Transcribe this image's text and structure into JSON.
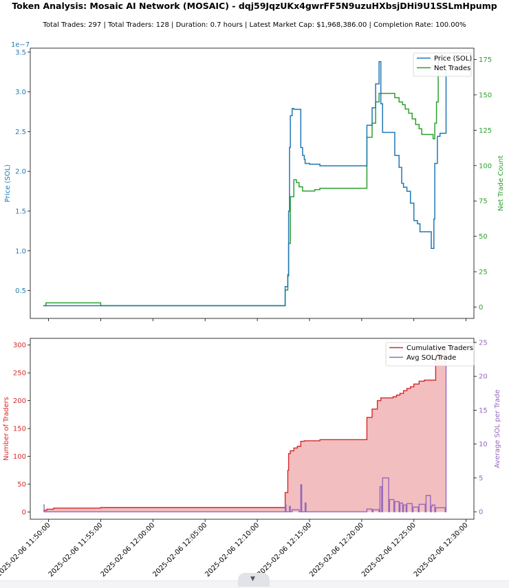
{
  "title": "Token Analysis: Mosaic AI Network (MOSAIC) - dqj59JqzUKx4gwrFF5N9uzuHXbsjDHi9U1SSLmHpump",
  "subtitle": "Total Trades: 297 | Total Traders: 128 | Duration: 0.7 hours | Latest Market Cap: $1,968,386.00 | Completion Rate: 100.00%",
  "colors": {
    "price": "#1f77b4",
    "net_trades": "#2ca02c",
    "cum_traders": "#d62728",
    "avg_sol": "#9467bd",
    "fill": "#f2bec0"
  },
  "scroll_icon": "chevron-down-icon",
  "chart_data": [
    {
      "type": "line",
      "ylabel": "Price (SOL)",
      "ylabel_right": "Net Trade Count",
      "y_offset_label": "1e−7",
      "ylim": [
        0.15,
        3.55
      ],
      "yticks": [
        "0.5",
        "1.0",
        "1.5",
        "2.0",
        "2.5",
        "3.0",
        "3.5"
      ],
      "ylim_right": [
        -8,
        183
      ],
      "yticks_right": [
        "0",
        "25",
        "50",
        "75",
        "100",
        "125",
        "150",
        "175"
      ],
      "legend": "upper right",
      "grid": false,
      "series": [
        {
          "name": "Price (SOL)",
          "axis": "left",
          "x": [
            "2025-02-06 11:49:30",
            "2025-02-06 11:49:40",
            "2025-02-06 11:55:00",
            "2025-02-06 12:12:30",
            "2025-02-06 12:12:40",
            "2025-02-06 12:12:55",
            "2025-02-06 12:13:00",
            "2025-02-06 12:13:05",
            "2025-02-06 12:13:10",
            "2025-02-06 12:13:20",
            "2025-02-06 12:13:30",
            "2025-02-06 12:13:50",
            "2025-02-06 12:14:10",
            "2025-02-06 12:14:20",
            "2025-02-06 12:14:30",
            "2025-02-06 12:14:35",
            "2025-02-06 12:15:00",
            "2025-02-06 12:16:00",
            "2025-02-06 12:20:20",
            "2025-02-06 12:20:30",
            "2025-02-06 12:21:00",
            "2025-02-06 12:21:20",
            "2025-02-06 12:21:40",
            "2025-02-06 12:21:50",
            "2025-02-06 12:22:00",
            "2025-02-06 12:23:10",
            "2025-02-06 12:23:35",
            "2025-02-06 12:23:50",
            "2025-02-06 12:24:00",
            "2025-02-06 12:24:20",
            "2025-02-06 12:24:40",
            "2025-02-06 12:25:00",
            "2025-02-06 12:25:20",
            "2025-02-06 12:25:35",
            "2025-02-06 12:26:05",
            "2025-02-06 12:26:40",
            "2025-02-06 12:26:50",
            "2025-02-06 12:26:55",
            "2025-02-06 12:27:00",
            "2025-02-06 12:27:15",
            "2025-02-06 12:27:30",
            "2025-02-06 12:28:05"
          ],
          "values": [
            0.31,
            0.31,
            0.31,
            0.31,
            0.55,
            0.7,
            1.5,
            2.3,
            2.7,
            2.79,
            2.78,
            2.78,
            2.3,
            2.2,
            2.15,
            2.1,
            2.09,
            2.07,
            2.07,
            2.58,
            2.8,
            3.1,
            3.38,
            2.85,
            2.49,
            2.2,
            2.05,
            1.85,
            1.8,
            1.75,
            1.6,
            1.38,
            1.34,
            1.24,
            1.24,
            1.03,
            1.03,
            1.4,
            2.1,
            2.44,
            2.48,
            3.3
          ]
        },
        {
          "name": "Net Trades",
          "axis": "right",
          "x": [
            "2025-02-06 11:49:30",
            "2025-02-06 11:49:45",
            "2025-02-06 11:50:00",
            "2025-02-06 11:55:00",
            "2025-02-06 12:12:30",
            "2025-02-06 12:12:40",
            "2025-02-06 12:12:55",
            "2025-02-06 12:13:00",
            "2025-02-06 12:13:10",
            "2025-02-06 12:13:30",
            "2025-02-06 12:13:45",
            "2025-02-06 12:14:00",
            "2025-02-06 12:14:20",
            "2025-02-06 12:14:40",
            "2025-02-06 12:15:30",
            "2025-02-06 12:16:00",
            "2025-02-06 12:20:20",
            "2025-02-06 12:20:30",
            "2025-02-06 12:21:00",
            "2025-02-06 12:21:20",
            "2025-02-06 12:21:40",
            "2025-02-06 12:22:10",
            "2025-02-06 12:23:10",
            "2025-02-06 12:23:35",
            "2025-02-06 12:23:55",
            "2025-02-06 12:24:10",
            "2025-02-06 12:24:30",
            "2025-02-06 12:24:50",
            "2025-02-06 12:25:10",
            "2025-02-06 12:25:30",
            "2025-02-06 12:25:45",
            "2025-02-06 12:26:50",
            "2025-02-06 12:27:00",
            "2025-02-06 12:27:10",
            "2025-02-06 12:27:20",
            "2025-02-06 12:28:05"
          ],
          "values": [
            1,
            3,
            3,
            1,
            1,
            12,
            22,
            45,
            78,
            90,
            88,
            85,
            82,
            82,
            83,
            84,
            84,
            120,
            130,
            145,
            151,
            151,
            148,
            145,
            143,
            140,
            137,
            133,
            129,
            126,
            122,
            119,
            130,
            145,
            178,
            178
          ]
        }
      ]
    },
    {
      "type": "area",
      "xlabel": "",
      "ylabel": "Number of Traders",
      "ylabel_right": "Average SOL per Trade",
      "ylim": [
        -13,
        312
      ],
      "yticks": [
        "0",
        "50",
        "100",
        "150",
        "200",
        "250",
        "300"
      ],
      "ylim_right": [
        -1.1,
        25.6
      ],
      "yticks_right": [
        "0",
        "5",
        "10",
        "15",
        "20",
        "25"
      ],
      "xlim": [
        "2025-02-06 11:48:15",
        "2025-02-06 12:30:45"
      ],
      "x_ticks": [
        "2025-02-06 11:50:00",
        "2025-02-06 11:55:00",
        "2025-02-06 12:00:00",
        "2025-02-06 12:05:00",
        "2025-02-06 12:10:00",
        "2025-02-06 12:15:00",
        "2025-02-06 12:20:00",
        "2025-02-06 12:25:00",
        "2025-02-06 12:30:00"
      ],
      "legend": "upper right",
      "grid": false,
      "series": [
        {
          "name": "Cumulative Traders",
          "axis": "left",
          "x": [
            "2025-02-06 11:49:30",
            "2025-02-06 11:49:50",
            "2025-02-06 11:50:30",
            "2025-02-06 11:55:00",
            "2025-02-06 12:12:30",
            "2025-02-06 12:12:40",
            "2025-02-06 12:12:55",
            "2025-02-06 12:13:00",
            "2025-02-06 12:13:10",
            "2025-02-06 12:13:30",
            "2025-02-06 12:13:50",
            "2025-02-06 12:14:10",
            "2025-02-06 12:14:30",
            "2025-02-06 12:15:00",
            "2025-02-06 12:16:00",
            "2025-02-06 12:20:20",
            "2025-02-06 12:20:30",
            "2025-02-06 12:21:00",
            "2025-02-06 12:21:30",
            "2025-02-06 12:21:50",
            "2025-02-06 12:22:20",
            "2025-02-06 12:23:00",
            "2025-02-06 12:23:20",
            "2025-02-06 12:23:40",
            "2025-02-06 12:24:00",
            "2025-02-06 12:24:20",
            "2025-02-06 12:24:40",
            "2025-02-06 12:25:00",
            "2025-02-06 12:25:30",
            "2025-02-06 12:26:00",
            "2025-02-06 12:26:50",
            "2025-02-06 12:27:05",
            "2025-02-06 12:27:20",
            "2025-02-06 12:28:05"
          ],
          "values": [
            3,
            5,
            7,
            8,
            8,
            35,
            75,
            105,
            110,
            115,
            118,
            127,
            128,
            128,
            130,
            130,
            170,
            185,
            200,
            205,
            205,
            207,
            210,
            213,
            218,
            222,
            225,
            230,
            235,
            237,
            237,
            280,
            295,
            295
          ]
        },
        {
          "name": "Avg SOL/Trade",
          "axis": "right",
          "x": [
            "2025-02-06 11:49:30",
            "2025-02-06 11:49:35",
            "2025-02-06 11:49:40",
            "2025-02-06 12:12:35",
            "2025-02-06 12:12:40",
            "2025-02-06 12:12:45",
            "2025-02-06 12:13:00",
            "2025-02-06 12:13:05",
            "2025-02-06 12:13:10",
            "2025-02-06 12:13:20",
            "2025-02-06 12:13:40",
            "2025-02-06 12:14:00",
            "2025-02-06 12:14:10",
            "2025-02-06 12:14:15",
            "2025-02-06 12:14:20",
            "2025-02-06 12:14:35",
            "2025-02-06 12:14:40",
            "2025-02-06 12:20:25",
            "2025-02-06 12:20:30",
            "2025-02-06 12:21:00",
            "2025-02-06 12:21:05",
            "2025-02-06 12:21:40",
            "2025-02-06 12:21:45",
            "2025-02-06 12:21:55",
            "2025-02-06 12:22:00",
            "2025-02-06 12:22:35",
            "2025-02-06 12:22:40",
            "2025-02-06 12:23:05",
            "2025-02-06 12:23:10",
            "2025-02-06 12:23:35",
            "2025-02-06 12:23:40",
            "2025-02-06 12:23:55",
            "2025-02-06 12:24:00",
            "2025-02-06 12:24:15",
            "2025-02-06 12:24:20",
            "2025-02-06 12:24:50",
            "2025-02-06 12:24:55",
            "2025-02-06 12:25:25",
            "2025-02-06 12:25:30",
            "2025-02-06 12:26:05",
            "2025-02-06 12:26:10",
            "2025-02-06 12:26:35",
            "2025-02-06 12:26:40",
            "2025-02-06 12:26:45",
            "2025-02-06 12:27:00",
            "2025-02-06 12:27:05",
            "2025-02-06 12:28:00",
            "2025-02-06 12:28:05"
          ],
          "values": [
            1.0,
            0,
            0,
            0,
            1.0,
            0,
            0,
            0.8,
            0,
            0.3,
            0.3,
            0,
            4.0,
            0,
            0,
            1.3,
            0,
            0,
            0.4,
            0,
            0.3,
            0,
            3.7,
            0,
            5.0,
            0,
            1.8,
            0,
            1.5,
            0,
            1.3,
            0,
            1.0,
            0,
            1.2,
            0,
            0.7,
            0,
            1.1,
            0,
            2.4,
            0,
            0.8,
            1.0,
            0,
            0.6,
            0,
            24.0
          ]
        }
      ]
    }
  ]
}
